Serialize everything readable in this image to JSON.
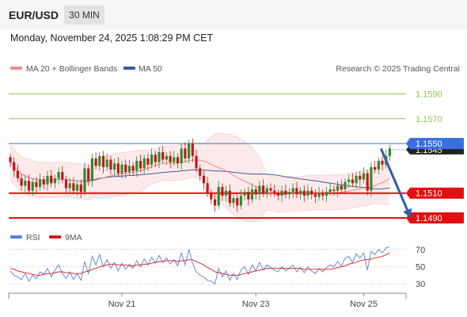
{
  "header": {
    "pair": "EUR/USD",
    "timeframe": "30 MIN",
    "datetime": "Monday, November 24, 2025 1:08:29 PM CET"
  },
  "legend": {
    "bollinger": "MA 20 + Bollinger Bands",
    "ma50": "MA 50",
    "credit": "Research © 2025 Trading Central",
    "rsi": "RSI",
    "rsi_ma": "9MA"
  },
  "colors": {
    "up_candle": "#2e8b2e",
    "down_candle": "#c01818",
    "bollinger": "#f08a8a",
    "ma50": "#3b5f9e",
    "resistance": "#8cc84b",
    "support": "#e01010",
    "pivot": "#3b6fe0",
    "current_price": "#222222",
    "rsi": "#5b7fe0",
    "rsi_ma": "#d81b1b",
    "arrow": "#2f5ea8"
  },
  "chart_data": [
    {
      "type": "candlestick",
      "title": "",
      "ylim": [
        1.1483,
        1.1605
      ],
      "x_ticks": [
        {
          "label": "Nov 21",
          "index": 30
        },
        {
          "label": "Nov 23",
          "index": 66
        },
        {
          "label": "Nov 25",
          "index": 95
        }
      ],
      "levels": [
        {
          "value": 1.159,
          "label": "1.1590",
          "kind": "resistance"
        },
        {
          "value": 1.157,
          "label": "1.1570",
          "kind": "resistance"
        },
        {
          "value": 1.155,
          "label": "1.1550",
          "kind": "pivot"
        },
        {
          "value": 1.151,
          "label": "1.1510",
          "kind": "support"
        },
        {
          "value": 1.149,
          "label": "1.1490",
          "kind": "support"
        }
      ],
      "current_price": {
        "value": 1.1545,
        "label": "1.1545"
      },
      "projection": {
        "from_index": 99,
        "from": 1.1546,
        "to_index": 107,
        "to": 1.149
      },
      "closes": [
        1.1535,
        1.1528,
        1.1522,
        1.1516,
        1.152,
        1.1512,
        1.1519,
        1.1515,
        1.1521,
        1.1517,
        1.1524,
        1.1518,
        1.1522,
        1.1527,
        1.1521,
        1.1514,
        1.1518,
        1.1512,
        1.1517,
        1.1511,
        1.153,
        1.152,
        1.1538,
        1.1532,
        1.154,
        1.1531,
        1.1537,
        1.1529,
        1.1534,
        1.1526,
        1.1533,
        1.1527,
        1.1532,
        1.1528,
        1.1536,
        1.153,
        1.1538,
        1.1533,
        1.1541,
        1.1535,
        1.1543,
        1.1537,
        1.154,
        1.1535,
        1.1539,
        1.1534,
        1.1546,
        1.1538,
        1.155,
        1.154,
        1.153,
        1.1524,
        1.1518,
        1.151,
        1.1505,
        1.15,
        1.1515,
        1.1508,
        1.1512,
        1.1502,
        1.1506,
        1.15,
        1.1508,
        1.1511,
        1.1505,
        1.1513,
        1.1509,
        1.1516,
        1.151,
        1.1514,
        1.1512,
        1.151,
        1.1508,
        1.1512,
        1.1509,
        1.1511,
        1.1514,
        1.1509,
        1.1512,
        1.1508,
        1.1512,
        1.1509,
        1.1507,
        1.151,
        1.1508,
        1.1511,
        1.1513,
        1.1512,
        1.1516,
        1.1513,
        1.1519,
        1.1521,
        1.1518,
        1.1524,
        1.1521,
        1.1526,
        1.1512,
        1.1531,
        1.1529,
        1.1536,
        1.1533,
        1.154,
        1.1546
      ]
    },
    {
      "type": "line",
      "title": "",
      "ylim": [
        20,
        80
      ],
      "y_ticks": [
        70,
        50,
        30
      ],
      "series": [
        {
          "name": "RSI",
          "values": [
            45,
            40,
            38,
            35,
            42,
            33,
            40,
            36,
            44,
            41,
            48,
            38,
            46,
            52,
            42,
            36,
            44,
            35,
            42,
            34,
            56,
            42,
            62,
            52,
            64,
            50,
            58,
            48,
            55,
            45,
            54,
            47,
            53,
            48,
            57,
            50,
            59,
            52,
            61,
            54,
            63,
            55,
            60,
            53,
            58,
            51,
            66,
            52,
            70,
            54,
            44,
            40,
            38,
            34,
            33,
            30,
            48,
            38,
            45,
            34,
            42,
            35,
            46,
            50,
            41,
            52,
            45,
            55,
            46,
            52,
            49,
            46,
            44,
            50,
            45,
            48,
            52,
            44,
            49,
            43,
            50,
            45,
            42,
            48,
            44,
            49,
            52,
            50,
            56,
            51,
            60,
            62,
            55,
            65,
            60,
            66,
            46,
            68,
            64,
            70,
            66,
            72,
            73
          ]
        },
        {
          "name": "9MA",
          "values": [
            48,
            47,
            45,
            44,
            43,
            42,
            41,
            40,
            40,
            41,
            42,
            42,
            43,
            44,
            44,
            43,
            43,
            42,
            42,
            42,
            44,
            45,
            47,
            48,
            50,
            51,
            52,
            53,
            53,
            52,
            52,
            52,
            51,
            51,
            52,
            52,
            53,
            53,
            54,
            55,
            56,
            56,
            57,
            57,
            57,
            56,
            57,
            57,
            58,
            58,
            56,
            54,
            52,
            49,
            47,
            44,
            43,
            42,
            41,
            40,
            40,
            40,
            41,
            42,
            43,
            44,
            45,
            46,
            47,
            48,
            48,
            48,
            48,
            48,
            48,
            48,
            48,
            48,
            48,
            47,
            47,
            47,
            47,
            47,
            47,
            47,
            47,
            48,
            49,
            50,
            51,
            53,
            54,
            55,
            57,
            58,
            58,
            59,
            60,
            61,
            62,
            64,
            66
          ]
        }
      ]
    }
  ]
}
